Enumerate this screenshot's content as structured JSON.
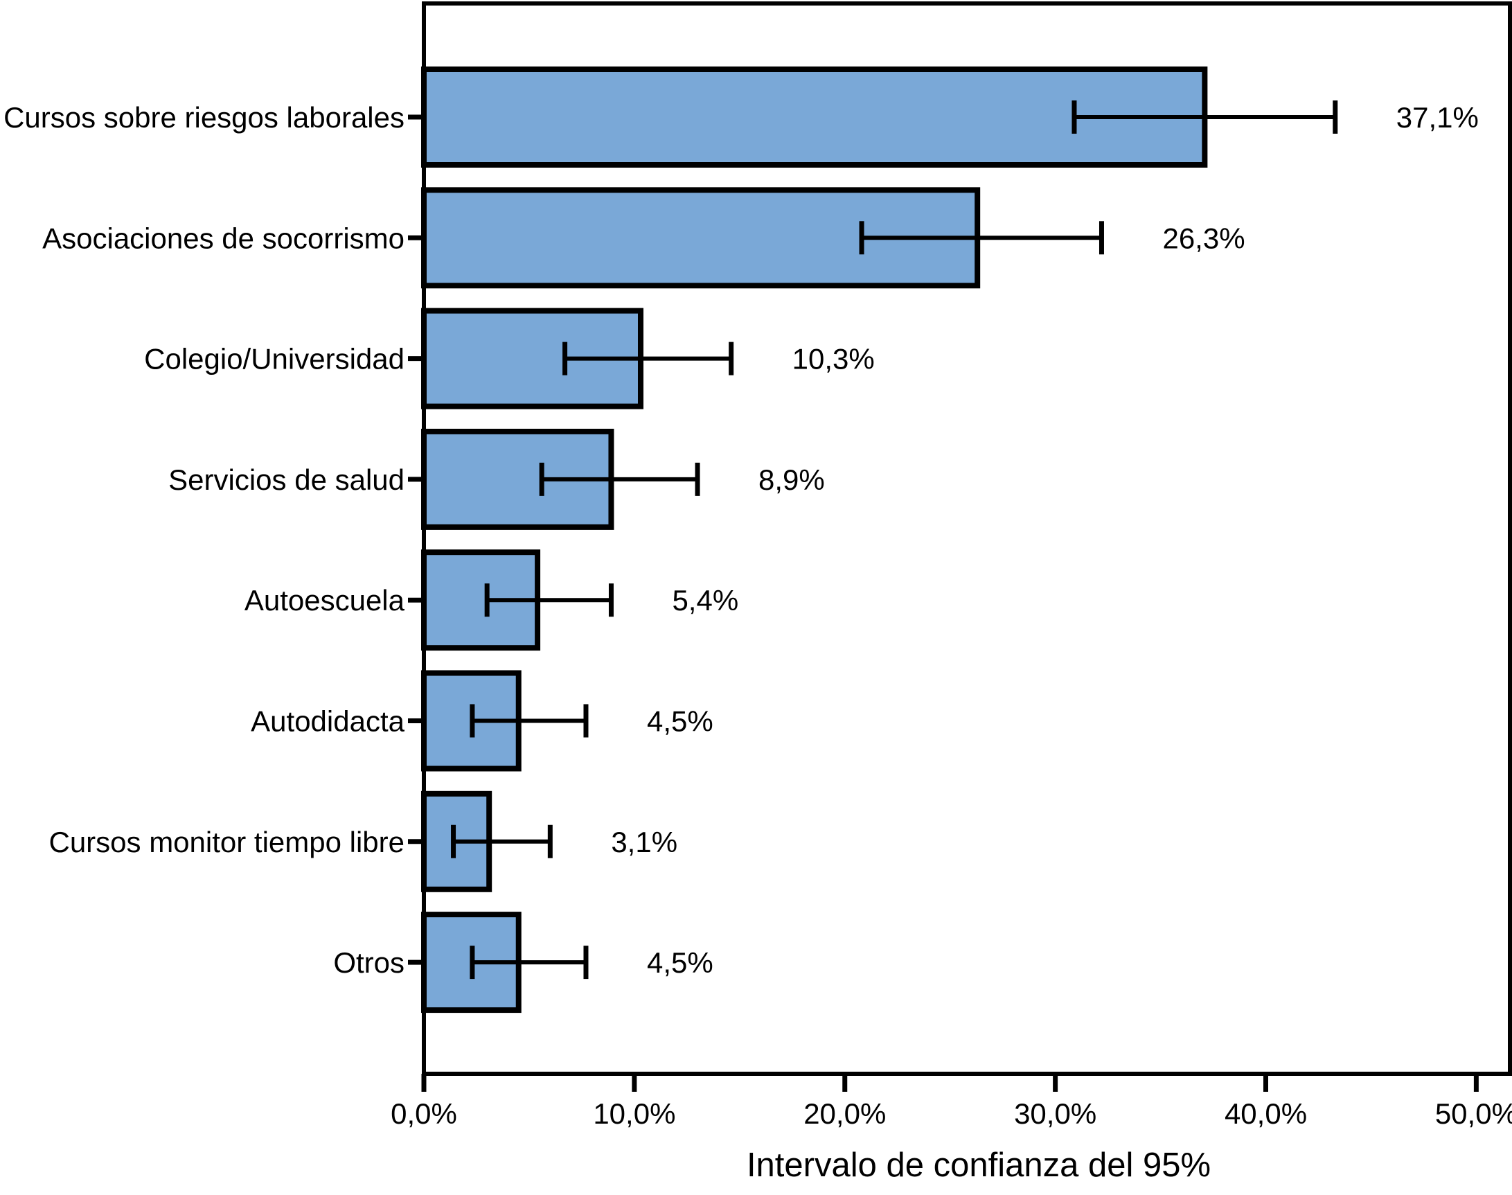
{
  "chart_data": {
    "type": "bar",
    "orientation": "horizontal",
    "title": "",
    "xlabel": "Intervalo de confianza del 95%",
    "ylabel": "",
    "xlim": [
      0,
      51.6
    ],
    "grid": false,
    "legend": false,
    "bar_color": "#7AA8D7",
    "bar_border_color": "#000000",
    "error_bar_color": "#000000",
    "axis_color": "#000000",
    "x_ticks": [
      {
        "value": 0,
        "label": "0,0%"
      },
      {
        "value": 10,
        "label": "10,0%"
      },
      {
        "value": 20,
        "label": "20,0%"
      },
      {
        "value": 30,
        "label": "30,0%"
      },
      {
        "value": 40,
        "label": "40,0%"
      },
      {
        "value": 50,
        "label": "50,0%"
      }
    ],
    "categories": [
      "Cursos sobre riesgos laborales",
      "Asociaciones de socorrismo",
      "Colegio/Universidad",
      "Servicios de salud",
      "Autoescuela",
      "Autodidacta",
      "Cursos monitor tiempo libre",
      "Otros"
    ],
    "values": [
      37.1,
      26.3,
      10.3,
      8.9,
      5.4,
      4.5,
      3.1,
      4.5
    ],
    "value_labels": [
      "37,1%",
      "26,3%",
      "10,3%",
      "8,9%",
      "5,4%",
      "4,5%",
      "3,1%",
      "4,5%"
    ],
    "ci_low": [
      30.9,
      20.8,
      6.7,
      5.6,
      3.0,
      2.3,
      1.4,
      2.3
    ],
    "ci_high": [
      43.3,
      32.2,
      14.6,
      13.0,
      8.9,
      7.7,
      6.0,
      7.7
    ]
  }
}
